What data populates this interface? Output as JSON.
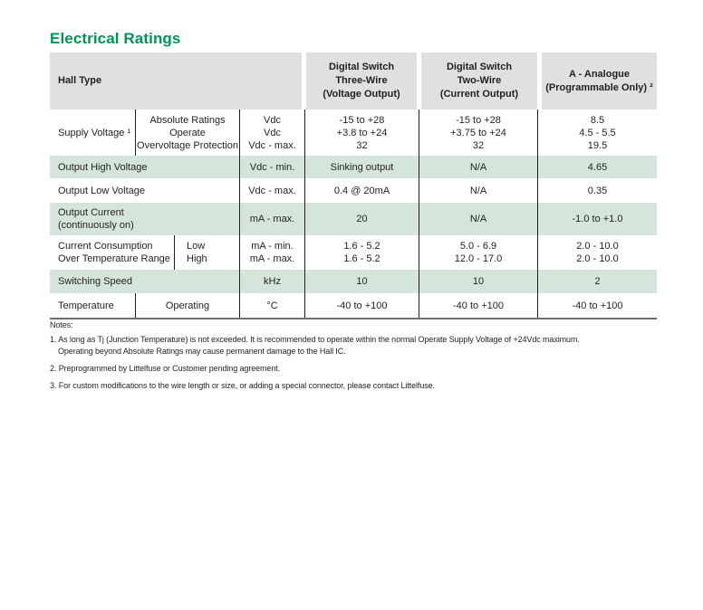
{
  "page_title": "Electrical Ratings",
  "colors": {
    "accent_green": "#009457",
    "header_bg": "#e0e0e1",
    "row_green": "#d6e5dc",
    "text": "#231f20",
    "column_rule": "#231f20",
    "bottom_rule": "#6d6e71"
  },
  "table": {
    "columns": {
      "hall_type": "Hall Type",
      "three_wire": [
        "Digital Switch",
        "Three-Wire",
        "(Voltage Output)"
      ],
      "two_wire": [
        "Digital Switch",
        "Two-Wire",
        "(Current Output)"
      ],
      "analogue": [
        "A - Analogue",
        "(Programmable Only) ²"
      ]
    },
    "rows": [
      {
        "label": "Supply Voltage ¹",
        "sub": [
          "Absolute Ratings",
          "Operate",
          "Overvoltage Protection"
        ],
        "units": [
          "Vdc",
          "Vdc",
          "Vdc - max."
        ],
        "three_wire": [
          "-15 to +28",
          "+3.8 to +24",
          "32"
        ],
        "two_wire": [
          "-15 to +28",
          "+3.75 to +24",
          "32"
        ],
        "analogue": [
          "8.5",
          "4.5 - 5.5",
          "19.5"
        ]
      },
      {
        "label": "Output High Voltage",
        "units": "Vdc - min.",
        "three_wire": "Sinking output",
        "two_wire": "N/A",
        "analogue": "4.65"
      },
      {
        "label": "Output Low Voltage",
        "units": "Vdc - max.",
        "three_wire": "0.4 @ 20mA",
        "two_wire": "N/A",
        "analogue": "0.35"
      },
      {
        "label": [
          "Output Current",
          "(continuously on)"
        ],
        "units": "mA - max.",
        "three_wire": "20",
        "two_wire": "N/A",
        "analogue": "-1.0 to +1.0"
      },
      {
        "label": [
          "Current Consumption",
          "Over Temperature Range"
        ],
        "sub": [
          "Low",
          "High"
        ],
        "units": [
          "mA - min.",
          "mA - max."
        ],
        "three_wire": [
          "1.6 - 5.2",
          "1.6 - 5.2"
        ],
        "two_wire": [
          "5.0 - 6.9",
          "12.0 - 17.0"
        ],
        "analogue": [
          "2.0 - 10.0",
          "2.0 - 10.0"
        ]
      },
      {
        "label": "Switching Speed",
        "units": "kHz",
        "three_wire": "10",
        "two_wire": "10",
        "analogue": "2"
      },
      {
        "label": "Temperature",
        "sub": "Operating",
        "units": "°C",
        "three_wire": "-40 to +100",
        "two_wire": "-40 to +100",
        "analogue": "-40 to +100"
      }
    ]
  },
  "notes": {
    "heading": "Notes:",
    "items": [
      [
        "1. As long as Tj (Junction Temperature) is not exceeded. It is recommended to operate within the normal Operate Supply Voltage of +24Vdc maximum.",
        "Operating beyond Absolute Ratings may cause permanent damage to the Hall IC."
      ],
      "2. Preprogrammed by Littelfuse or Customer pending agreement.",
      "3. For custom modifications to the wire length or size, or adding a special connector, please contact Littelfuse."
    ]
  }
}
